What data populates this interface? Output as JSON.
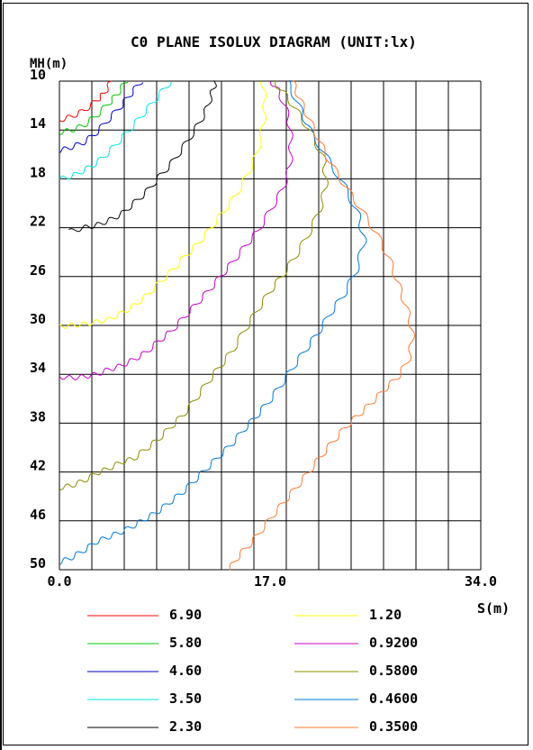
{
  "chart_data": {
    "type": "line",
    "title": "C0 PLANE ISOLUX DIAGRAM (UNIT:lx)",
    "ylabel": "MH(m)",
    "xlabel": "S(m)",
    "xlim": [
      0,
      34
    ],
    "ylim": [
      10,
      50
    ],
    "y_inverted": true,
    "grid": true,
    "x_tick_labels": [
      "0.0",
      "17.0",
      "34.0"
    ],
    "y_tick_labels": [
      "10",
      "14",
      "18",
      "22",
      "26",
      "30",
      "34",
      "38",
      "42",
      "46",
      "50"
    ],
    "legend_position": "bottom",
    "series": [
      {
        "name": "6.90",
        "color": "#ff0000",
        "points": [
          [
            0.0,
            13.2
          ],
          [
            1.0,
            12.9
          ],
          [
            2.0,
            12.4
          ],
          [
            3.0,
            11.6
          ],
          [
            3.6,
            11.0
          ],
          [
            4.2,
            10.0
          ]
        ]
      },
      {
        "name": "5.80",
        "color": "#00c800",
        "points": [
          [
            0.0,
            14.2
          ],
          [
            1.0,
            14.0
          ],
          [
            2.0,
            13.6
          ],
          [
            3.0,
            12.8
          ],
          [
            4.0,
            11.8
          ],
          [
            4.7,
            11.0
          ],
          [
            5.4,
            10.0
          ]
        ]
      },
      {
        "name": "4.60",
        "color": "#0000c8",
        "points": [
          [
            0.0,
            15.7
          ],
          [
            1.0,
            15.4
          ],
          [
            2.0,
            15.0
          ],
          [
            3.0,
            14.2
          ],
          [
            4.0,
            13.1
          ],
          [
            5.0,
            12.0
          ],
          [
            5.8,
            11.0
          ],
          [
            6.6,
            10.0
          ]
        ]
      },
      {
        "name": "3.50",
        "color": "#00e6e6",
        "points": [
          [
            0.0,
            18.0
          ],
          [
            1.0,
            17.8
          ],
          [
            2.0,
            17.3
          ],
          [
            3.0,
            16.7
          ],
          [
            4.0,
            15.8
          ],
          [
            5.0,
            14.7
          ],
          [
            6.0,
            13.6
          ],
          [
            7.0,
            12.4
          ],
          [
            8.0,
            11.2
          ],
          [
            9.0,
            10.0
          ]
        ]
      },
      {
        "name": "2.30",
        "color": "#000000",
        "points": [
          [
            0.8,
            22.3
          ],
          [
            2.0,
            22.0
          ],
          [
            3.0,
            21.8
          ],
          [
            4.0,
            21.4
          ],
          [
            5.0,
            20.9
          ],
          [
            6.0,
            20.0
          ],
          [
            7.0,
            19.1
          ],
          [
            8.0,
            17.9
          ],
          [
            9.0,
            16.8
          ],
          [
            10.0,
            15.4
          ],
          [
            11.0,
            13.9
          ],
          [
            11.8,
            12.5
          ],
          [
            12.3,
            11.0
          ],
          [
            12.6,
            10.0
          ]
        ]
      },
      {
        "name": "1.20",
        "color": "#ffff00",
        "points": [
          [
            0.0,
            30.1
          ],
          [
            1.0,
            30.0
          ],
          [
            2.0,
            29.9
          ],
          [
            3.0,
            29.7
          ],
          [
            4.0,
            29.5
          ],
          [
            5.0,
            29.0
          ],
          [
            6.0,
            28.4
          ],
          [
            7.0,
            27.6
          ],
          [
            8.0,
            26.6
          ],
          [
            9.0,
            25.6
          ],
          [
            10.0,
            24.5
          ],
          [
            11.0,
            23.5
          ],
          [
            12.0,
            22.3
          ],
          [
            13.0,
            21.0
          ],
          [
            14.0,
            19.7
          ],
          [
            15.0,
            18.0
          ],
          [
            15.8,
            16.3
          ],
          [
            16.4,
            14.0
          ],
          [
            16.6,
            12.0
          ],
          [
            16.4,
            10.0
          ]
        ]
      },
      {
        "name": "0.9200",
        "color": "#c800c8",
        "points": [
          [
            0.0,
            34.2
          ],
          [
            1.0,
            34.3
          ],
          [
            2.0,
            34.2
          ],
          [
            3.0,
            34.0
          ],
          [
            4.0,
            33.6
          ],
          [
            5.0,
            33.3
          ],
          [
            6.0,
            32.8
          ],
          [
            7.0,
            32.2
          ],
          [
            8.0,
            31.3
          ],
          [
            9.0,
            30.5
          ],
          [
            10.0,
            29.4
          ],
          [
            11.0,
            28.3
          ],
          [
            12.0,
            27.2
          ],
          [
            13.0,
            26.0
          ],
          [
            14.0,
            24.8
          ],
          [
            15.0,
            23.5
          ],
          [
            16.0,
            22.3
          ],
          [
            17.0,
            20.6
          ],
          [
            18.0,
            18.9
          ],
          [
            18.6,
            17.0
          ],
          [
            18.7,
            15.0
          ],
          [
            18.5,
            13.0
          ],
          [
            17.8,
            11.0
          ],
          [
            17.1,
            10.0
          ]
        ]
      },
      {
        "name": "0.5800",
        "color": "#8c8c00",
        "points": [
          [
            0.0,
            43.3
          ],
          [
            1.0,
            43.1
          ],
          [
            2.0,
            42.7
          ],
          [
            3.0,
            42.1
          ],
          [
            4.0,
            41.7
          ],
          [
            5.0,
            41.2
          ],
          [
            6.0,
            40.9
          ],
          [
            7.0,
            40.1
          ],
          [
            8.0,
            39.3
          ],
          [
            9.0,
            38.3
          ],
          [
            10.0,
            37.3
          ],
          [
            11.0,
            36.0
          ],
          [
            12.0,
            34.6
          ],
          [
            13.0,
            33.3
          ],
          [
            14.0,
            32.0
          ],
          [
            15.0,
            30.3
          ],
          [
            16.0,
            28.7
          ],
          [
            17.0,
            27.2
          ],
          [
            18.0,
            25.9
          ],
          [
            19.0,
            24.4
          ],
          [
            20.0,
            22.7
          ],
          [
            21.0,
            20.6
          ],
          [
            21.5,
            18.6
          ],
          [
            21.4,
            16.6
          ],
          [
            20.5,
            14.6
          ],
          [
            19.4,
            12.8
          ],
          [
            18.3,
            11.2
          ],
          [
            17.3,
            10.0
          ]
        ]
      },
      {
        "name": "0.4600",
        "color": "#0078dc",
        "points": [
          [
            0.0,
            49.4
          ],
          [
            1.0,
            49.0
          ],
          [
            2.0,
            48.4
          ],
          [
            3.0,
            47.7
          ],
          [
            4.0,
            47.3
          ],
          [
            5.0,
            46.9
          ],
          [
            6.0,
            46.4
          ],
          [
            7.0,
            45.8
          ],
          [
            8.0,
            45.2
          ],
          [
            9.0,
            44.4
          ],
          [
            10.0,
            43.6
          ],
          [
            11.0,
            42.6
          ],
          [
            12.0,
            41.6
          ],
          [
            13.0,
            40.6
          ],
          [
            14.0,
            39.6
          ],
          [
            15.0,
            38.4
          ],
          [
            16.0,
            37.3
          ],
          [
            17.0,
            36.1
          ],
          [
            18.0,
            34.7
          ],
          [
            19.0,
            33.2
          ],
          [
            20.0,
            31.8
          ],
          [
            21.0,
            30.4
          ],
          [
            22.0,
            28.8
          ],
          [
            23.0,
            27.4
          ],
          [
            24.0,
            25.4
          ],
          [
            24.6,
            23.0
          ],
          [
            24.1,
            20.9
          ],
          [
            23.0,
            18.6
          ],
          [
            21.6,
            16.3
          ],
          [
            20.2,
            14.0
          ],
          [
            19.4,
            12.2
          ],
          [
            18.4,
            10.0
          ]
        ]
      },
      {
        "name": "0.3500",
        "color": "#ff7832",
        "points": [
          [
            13.7,
            50.0
          ],
          [
            14.5,
            48.8
          ],
          [
            15.5,
            47.8
          ],
          [
            16.5,
            46.5
          ],
          [
            17.5,
            45.2
          ],
          [
            18.5,
            44.0
          ],
          [
            19.5,
            42.8
          ],
          [
            20.5,
            41.5
          ],
          [
            21.5,
            40.2
          ],
          [
            22.5,
            39.0
          ],
          [
            23.5,
            37.9
          ],
          [
            24.5,
            37.0
          ],
          [
            25.5,
            36.0
          ],
          [
            26.5,
            35.0
          ],
          [
            27.5,
            34.0
          ],
          [
            28.3,
            32.5
          ],
          [
            28.5,
            30.5
          ],
          [
            28.0,
            28.5
          ],
          [
            27.3,
            26.5
          ],
          [
            26.6,
            24.5
          ],
          [
            25.6,
            22.5
          ],
          [
            24.4,
            20.6
          ],
          [
            23.2,
            18.8
          ],
          [
            22.0,
            16.9
          ],
          [
            21.0,
            15.0
          ],
          [
            20.2,
            13.2
          ],
          [
            19.4,
            11.5
          ],
          [
            18.8,
            10.0
          ]
        ]
      }
    ]
  }
}
